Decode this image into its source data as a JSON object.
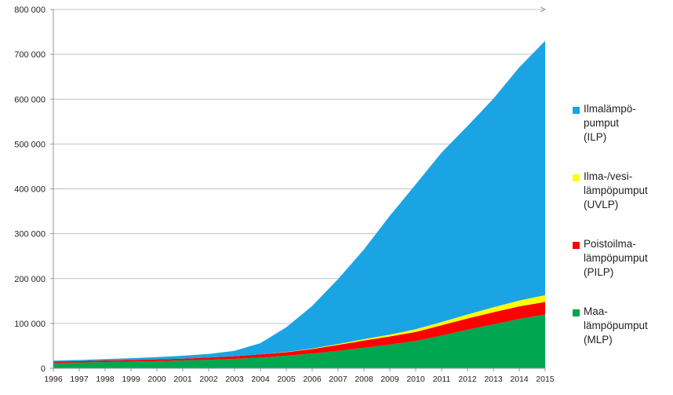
{
  "chart_data": {
    "type": "area",
    "stacked": true,
    "x": [
      "1996",
      "1997",
      "1998",
      "1999",
      "2000",
      "2001",
      "2002",
      "2003",
      "2004",
      "2005",
      "2006",
      "2007",
      "2008",
      "2009",
      "2010",
      "2011",
      "2012",
      "2013",
      "2014",
      "2015"
    ],
    "ylim": [
      0,
      800000
    ],
    "yticks": [
      "0",
      "100 000",
      "200 000",
      "300 000",
      "400 000",
      "500 000",
      "600 000",
      "700 000",
      "800 000"
    ],
    "grid": true,
    "legend_position": "right",
    "series": [
      {
        "name": "Maa-\nlämpöpumput\n(MLP)",
        "color": "#00a650",
        "values": [
          12000,
          13000,
          14000,
          15000,
          16000,
          17500,
          19000,
          21000,
          24000,
          28000,
          33000,
          39000,
          46000,
          53000,
          61000,
          73000,
          86000,
          98000,
          110000,
          120000
        ]
      },
      {
        "name": "Poistoilma-\nlämpöpumput\n(PILP)",
        "color": "#ff0000",
        "values": [
          3000,
          3000,
          3500,
          3500,
          4000,
          4000,
          5000,
          6000,
          7000,
          8000,
          10000,
          13000,
          16000,
          18000,
          20000,
          23000,
          25000,
          27000,
          28000,
          28000
        ]
      },
      {
        "name": "Ilma-/vesi-\nlämpöpumput\n(UVLP)",
        "color": "#ffff00",
        "values": [
          0,
          0,
          0,
          0,
          0,
          0,
          0,
          0,
          0,
          500,
          1000,
          2000,
          3000,
          4000,
          6000,
          7000,
          9000,
          11000,
          13000,
          15000
        ]
      },
      {
        "name": "Ilmalämpö-\npumput\n(ILP)",
        "color": "#1aa4e4",
        "values": [
          2000,
          2500,
          3000,
          4000,
          5000,
          6500,
          8000,
          12000,
          25000,
          55000,
          95000,
          145000,
          200000,
          265000,
          323000,
          378000,
          420000,
          465000,
          520000,
          567000
        ]
      }
    ]
  }
}
